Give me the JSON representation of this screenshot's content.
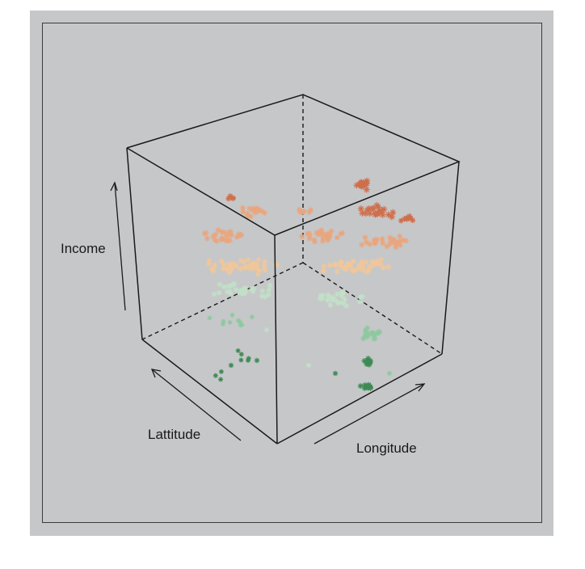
{
  "chart_data": {
    "type": "scatter",
    "subtype": "3d-scatter",
    "title": "",
    "axes": {
      "x": "Longitude",
      "y": "Lattitude",
      "z": "Income"
    },
    "marker": "asterisk",
    "background_color": "#c6c7c9",
    "color_scale": [
      "#3f8a55",
      "#8fc99f",
      "#c2e0c8",
      "#f1c79a",
      "#e9a67e",
      "#cf6f4c"
    ],
    "color_meaning": "Income level (low = green, high = orange/red)",
    "grid": false,
    "box": true
  }
}
